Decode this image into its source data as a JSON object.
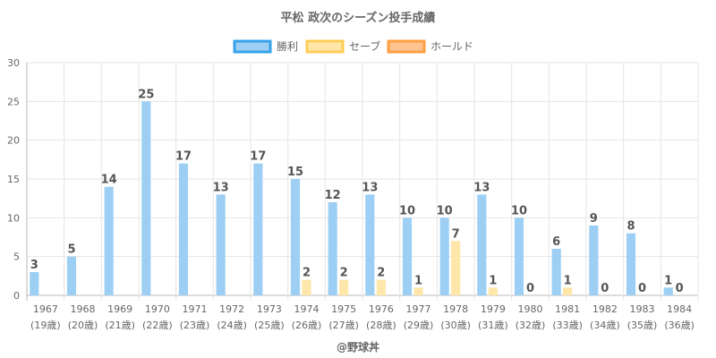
{
  "chart_data": {
    "type": "bar",
    "title": "平松 政次のシーズン投手成績",
    "categories": [
      "1967",
      "1968",
      "1969",
      "1970",
      "1971",
      "1972",
      "1973",
      "1974",
      "1975",
      "1976",
      "1977",
      "1978",
      "1979",
      "1980",
      "1981",
      "1982",
      "1983",
      "1984"
    ],
    "subcategories": [
      "(19歳)",
      "(20歳)",
      "(21歳)",
      "(22歳)",
      "(23歳)",
      "(24歳)",
      "(25歳)",
      "(26歳)",
      "(27歳)",
      "(28歳)",
      "(29歳)",
      "(30歳)",
      "(31歳)",
      "(32歳)",
      "(33歳)",
      "(34歳)",
      "(35歳)",
      "(36歳)"
    ],
    "series": [
      {
        "name": "勝利",
        "color": "#9ccff3",
        "legend_fill": "#9ccff3",
        "legend_border": "#36a2eb",
        "values": [
          3,
          5,
          14,
          25,
          17,
          13,
          17,
          15,
          12,
          13,
          10,
          10,
          13,
          10,
          6,
          9,
          8,
          1
        ],
        "labels": [
          "3",
          "5",
          "14",
          "25",
          "17",
          "13",
          "17",
          "15",
          "12",
          "13",
          "10",
          "10",
          "13",
          "10",
          "6",
          "9",
          "8",
          "1"
        ]
      },
      {
        "name": "セーブ",
        "color": "#ffe6a9",
        "legend_fill": "#ffe6a9",
        "legend_border": "#ffcd56",
        "values": [
          null,
          null,
          null,
          null,
          null,
          null,
          null,
          2,
          2,
          2,
          1,
          7,
          1,
          0,
          1,
          0,
          0,
          0
        ],
        "labels": [
          null,
          null,
          null,
          null,
          null,
          null,
          null,
          "2",
          "2",
          "2",
          "1",
          "7",
          "1",
          "0",
          "1",
          "0",
          "0",
          "0"
        ]
      },
      {
        "name": "ホールド",
        "color": "#ffc291",
        "legend_fill": "#ffc291",
        "legend_border": "#ff9f40",
        "values": [
          null,
          null,
          null,
          null,
          null,
          null,
          null,
          null,
          null,
          null,
          null,
          null,
          null,
          null,
          null,
          null,
          null,
          null
        ],
        "labels": [
          null,
          null,
          null,
          null,
          null,
          null,
          null,
          null,
          null,
          null,
          null,
          null,
          null,
          null,
          null,
          null,
          null,
          null
        ]
      }
    ],
    "yticks": [
      "0",
      "5",
      "10",
      "15",
      "20",
      "25",
      "30"
    ],
    "ylim": [
      0,
      30
    ],
    "grid": true,
    "legend_position": "top-center"
  },
  "credit": "@野球丼"
}
